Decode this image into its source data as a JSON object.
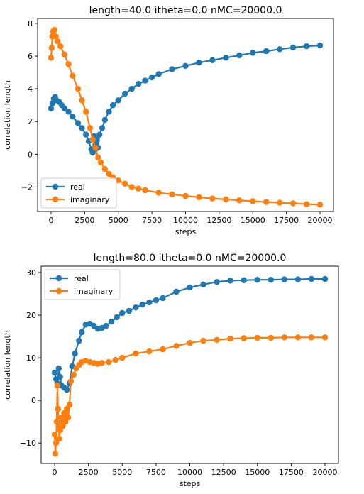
{
  "chart_data": [
    {
      "type": "line",
      "title": "length=40.0 itheta=0.0 nMC=20000.0",
      "xlabel": "steps",
      "ylabel": "correlation length",
      "xlim": [
        -1000,
        21000
      ],
      "ylim": [
        -3.5,
        8.3
      ],
      "xticks": [
        0,
        2500,
        5000,
        7500,
        10000,
        12500,
        15000,
        17500,
        20000
      ],
      "yticks": [
        -2,
        0,
        2,
        4,
        6,
        8
      ],
      "legend": "lower-left",
      "grid": false,
      "series": [
        {
          "name": "real",
          "color": "#1f77b4",
          "x": [
            0,
            100,
            200,
            300,
            400,
            600,
            800,
            1000,
            1300,
            1600,
            2000,
            2300,
            2600,
            2800,
            3000,
            3100,
            3200,
            3300,
            3400,
            3500,
            3600,
            3800,
            4000,
            4300,
            4600,
            5000,
            5500,
            6000,
            6500,
            7000,
            7500,
            8000,
            9000,
            10000,
            11000,
            12000,
            13000,
            14000,
            15000,
            16000,
            17000,
            18000,
            19000,
            20000
          ],
          "y": [
            2.8,
            3.1,
            3.4,
            3.5,
            3.3,
            3.2,
            3.0,
            2.8,
            2.6,
            2.3,
            1.9,
            1.6,
            1.2,
            0.8,
            0.3,
            0.1,
            1.1,
            0.3,
            0.9,
            0.4,
            1.2,
            1.6,
            2.1,
            2.6,
            3.0,
            3.3,
            3.7,
            4.0,
            4.3,
            4.5,
            4.7,
            4.9,
            5.2,
            5.4,
            5.6,
            5.75,
            5.9,
            6.05,
            6.2,
            6.3,
            6.42,
            6.52,
            6.6,
            6.65
          ]
        },
        {
          "name": "imaginary",
          "color": "#ff7f0e",
          "x": [
            0,
            50,
            100,
            150,
            250,
            350,
            500,
            700,
            1000,
            1300,
            1600,
            2000,
            2300,
            2600,
            2900,
            3100,
            3300,
            3500,
            3700,
            4000,
            4300,
            4600,
            5000,
            5500,
            6000,
            6500,
            7000,
            8000,
            9000,
            10000,
            11000,
            12000,
            13000,
            14000,
            15000,
            16000,
            17000,
            18000,
            19000,
            20000
          ],
          "y": [
            5.9,
            6.5,
            7.2,
            7.5,
            7.6,
            7.2,
            6.9,
            6.6,
            6.1,
            5.5,
            4.8,
            4.0,
            3.3,
            2.6,
            1.6,
            0.9,
            0.4,
            -0.2,
            -0.5,
            -0.9,
            -1.2,
            -1.4,
            -1.6,
            -1.8,
            -2.0,
            -2.1,
            -2.2,
            -2.35,
            -2.45,
            -2.55,
            -2.63,
            -2.7,
            -2.76,
            -2.82,
            -2.87,
            -2.92,
            -2.96,
            -3.0,
            -3.05,
            -3.08
          ]
        }
      ]
    },
    {
      "type": "line",
      "title": "length=80.0 itheta=0.0 nMC=20000.0",
      "xlabel": "steps",
      "ylabel": "correlation length",
      "xlim": [
        -1000,
        21000
      ],
      "ylim": [
        -14.8,
        31.5
      ],
      "xticks": [
        0,
        2500,
        5000,
        7500,
        10000,
        12500,
        15000,
        17500,
        20000
      ],
      "yticks": [
        -10,
        0,
        10,
        20,
        30
      ],
      "legend": "upper-left",
      "grid": false,
      "series": [
        {
          "name": "real",
          "color": "#1f77b4",
          "x": [
            0,
            100,
            200,
            300,
            400,
            500,
            700,
            900,
            1100,
            1300,
            1500,
            1800,
            2000,
            2300,
            2600,
            2900,
            3200,
            3500,
            3800,
            4200,
            4600,
            5000,
            5500,
            6000,
            6500,
            7000,
            7500,
            8000,
            9000,
            10000,
            11000,
            12000,
            13000,
            14000,
            15000,
            16000,
            17000,
            18000,
            19000,
            20000
          ],
          "y": [
            6.5,
            5.0,
            4.0,
            7.5,
            5.5,
            3.5,
            3.0,
            2.5,
            4.0,
            8.0,
            11.0,
            14.0,
            16.0,
            17.8,
            18.0,
            17.5,
            16.8,
            17.0,
            17.5,
            18.5,
            19.5,
            20.5,
            21.0,
            21.8,
            22.5,
            23.0,
            23.5,
            24.0,
            25.5,
            26.5,
            27.2,
            27.8,
            28.1,
            28.2,
            28.3,
            28.3,
            28.4,
            28.4,
            28.5,
            28.5
          ]
        },
        {
          "name": "imaginary",
          "color": "#ff7f0e",
          "x": [
            0,
            50,
            100,
            150,
            200,
            250,
            300,
            350,
            400,
            500,
            600,
            700,
            800,
            900,
            1000,
            1100,
            1200,
            1400,
            1600,
            1800,
            2000,
            2300,
            2600,
            2900,
            3200,
            3500,
            4000,
            4500,
            5000,
            6000,
            7000,
            8000,
            9000,
            10000,
            11000,
            12000,
            13000,
            14000,
            15000,
            16000,
            17000,
            18000,
            19000,
            20000
          ],
          "y": [
            -8,
            -12.5,
            -10,
            -5,
            3.5,
            -2,
            -6,
            -9,
            -7,
            -4,
            -6,
            -3,
            -5,
            -2,
            -4,
            -1,
            4.5,
            6.0,
            7.5,
            8.3,
            9.0,
            9.3,
            9.0,
            8.8,
            8.6,
            8.8,
            9.0,
            9.5,
            10.0,
            11.0,
            11.5,
            12.0,
            12.8,
            13.5,
            14.0,
            14.2,
            14.5,
            14.6,
            14.7,
            14.7,
            14.8,
            14.8,
            14.8,
            14.8
          ]
        }
      ]
    }
  ]
}
